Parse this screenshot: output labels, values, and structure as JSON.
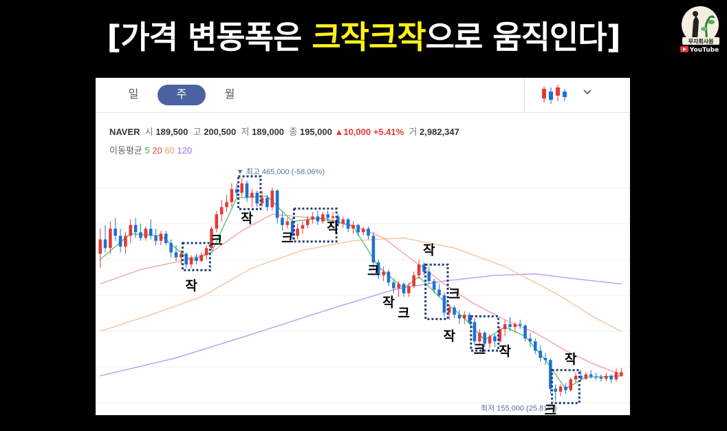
{
  "title": {
    "pre": "[가격 변동폭은 ",
    "highlight": "크작크작",
    "post": "으로 움직인다]"
  },
  "logo": {
    "channel": "무자회사원",
    "platform": "YouTube"
  },
  "tabs": [
    {
      "label": "일"
    },
    {
      "label": "주",
      "active": true
    },
    {
      "label": "월"
    }
  ],
  "stock": {
    "name": "NAVER",
    "open_label": "시",
    "open": "189,500",
    "high_label": "고",
    "high": "200,500",
    "low_label": "저",
    "low": "189,000",
    "close_label": "종",
    "close": "195,000",
    "change": "10,000",
    "change_pct": "+5.41%",
    "volume_label": "거",
    "volume": "2,982,347"
  },
  "ma_legend": {
    "label": "이동평균",
    "items": [
      {
        "p": "5",
        "color": "#3ab54a"
      },
      {
        "p": "20",
        "color": "#e8474b"
      },
      {
        "p": "60",
        "color": "#f29f5c"
      },
      {
        "p": "120",
        "color": "#9a6cf0"
      }
    ]
  },
  "colors": {
    "up": "#e53935",
    "down": "#1e6fd9",
    "box": "#1f3b7a"
  },
  "chart_data": {
    "type": "candlestick",
    "series_count": 104,
    "high_annotation": "최고 465,000 (-58.06%)",
    "low_annotation": "최저 155,000 (25.81%)",
    "ylim": [
      140000,
      490000
    ],
    "candles": [
      {
        "o": 360000,
        "h": 395000,
        "l": 340000,
        "c": 380000
      },
      {
        "o": 380000,
        "h": 400000,
        "l": 362000,
        "c": 368000
      },
      {
        "o": 368000,
        "h": 405000,
        "l": 360000,
        "c": 395000
      },
      {
        "o": 395000,
        "h": 410000,
        "l": 378000,
        "c": 385000
      },
      {
        "o": 385000,
        "h": 395000,
        "l": 362000,
        "c": 370000
      },
      {
        "o": 370000,
        "h": 390000,
        "l": 360000,
        "c": 385000
      },
      {
        "o": 385000,
        "h": 408000,
        "l": 375000,
        "c": 400000
      },
      {
        "o": 400000,
        "h": 410000,
        "l": 382000,
        "c": 390000
      },
      {
        "o": 390000,
        "h": 402000,
        "l": 378000,
        "c": 382000
      },
      {
        "o": 382000,
        "h": 398000,
        "l": 378000,
        "c": 395000
      },
      {
        "o": 395000,
        "h": 408000,
        "l": 380000,
        "c": 385000
      },
      {
        "o": 385000,
        "h": 395000,
        "l": 372000,
        "c": 378000
      },
      {
        "o": 378000,
        "h": 392000,
        "l": 372000,
        "c": 388000
      },
      {
        "o": 388000,
        "h": 392000,
        "l": 372000,
        "c": 375000
      },
      {
        "o": 375000,
        "h": 380000,
        "l": 355000,
        "c": 362000
      },
      {
        "o": 362000,
        "h": 372000,
        "l": 350000,
        "c": 355000
      },
      {
        "o": 355000,
        "h": 365000,
        "l": 345000,
        "c": 360000
      },
      {
        "o": 360000,
        "h": 362000,
        "l": 340000,
        "c": 345000
      },
      {
        "o": 345000,
        "h": 358000,
        "l": 340000,
        "c": 355000
      },
      {
        "o": 355000,
        "h": 360000,
        "l": 345000,
        "c": 350000
      },
      {
        "o": 350000,
        "h": 362000,
        "l": 348000,
        "c": 358000
      },
      {
        "o": 358000,
        "h": 372000,
        "l": 352000,
        "c": 368000
      },
      {
        "o": 368000,
        "h": 398000,
        "l": 365000,
        "c": 395000
      },
      {
        "o": 395000,
        "h": 420000,
        "l": 390000,
        "c": 415000
      },
      {
        "o": 415000,
        "h": 435000,
        "l": 405000,
        "c": 425000
      },
      {
        "o": 425000,
        "h": 442000,
        "l": 418000,
        "c": 432000
      },
      {
        "o": 432000,
        "h": 458000,
        "l": 425000,
        "c": 450000
      },
      {
        "o": 450000,
        "h": 458000,
        "l": 438000,
        "c": 445000
      },
      {
        "o": 445000,
        "h": 465000,
        "l": 440000,
        "c": 458000
      },
      {
        "o": 458000,
        "h": 462000,
        "l": 432000,
        "c": 438000
      },
      {
        "o": 438000,
        "h": 450000,
        "l": 425000,
        "c": 445000
      },
      {
        "o": 445000,
        "h": 448000,
        "l": 425000,
        "c": 430000
      },
      {
        "o": 430000,
        "h": 448000,
        "l": 425000,
        "c": 438000
      },
      {
        "o": 438000,
        "h": 442000,
        "l": 420000,
        "c": 425000
      },
      {
        "o": 425000,
        "h": 452000,
        "l": 420000,
        "c": 448000
      },
      {
        "o": 448000,
        "h": 450000,
        "l": 402000,
        "c": 410000
      },
      {
        "o": 410000,
        "h": 418000,
        "l": 392000,
        "c": 400000
      },
      {
        "o": 400000,
        "h": 410000,
        "l": 395000,
        "c": 405000
      },
      {
        "o": 405000,
        "h": 410000,
        "l": 380000,
        "c": 385000
      },
      {
        "o": 385000,
        "h": 402000,
        "l": 380000,
        "c": 395000
      },
      {
        "o": 395000,
        "h": 405000,
        "l": 388000,
        "c": 400000
      },
      {
        "o": 400000,
        "h": 412000,
        "l": 395000,
        "c": 408000
      },
      {
        "o": 408000,
        "h": 418000,
        "l": 402000,
        "c": 412000
      },
      {
        "o": 412000,
        "h": 420000,
        "l": 400000,
        "c": 405000
      },
      {
        "o": 405000,
        "h": 418000,
        "l": 402000,
        "c": 415000
      },
      {
        "o": 415000,
        "h": 420000,
        "l": 405000,
        "c": 410000
      },
      {
        "o": 410000,
        "h": 418000,
        "l": 402000,
        "c": 412000
      },
      {
        "o": 412000,
        "h": 415000,
        "l": 398000,
        "c": 402000
      },
      {
        "o": 402000,
        "h": 412000,
        "l": 396000,
        "c": 408000
      },
      {
        "o": 408000,
        "h": 410000,
        "l": 390000,
        "c": 395000
      },
      {
        "o": 395000,
        "h": 405000,
        "l": 388000,
        "c": 400000
      },
      {
        "o": 400000,
        "h": 402000,
        "l": 385000,
        "c": 390000
      },
      {
        "o": 390000,
        "h": 398000,
        "l": 385000,
        "c": 395000
      },
      {
        "o": 395000,
        "h": 398000,
        "l": 380000,
        "c": 385000
      },
      {
        "o": 385000,
        "h": 390000,
        "l": 340000,
        "c": 348000
      },
      {
        "o": 348000,
        "h": 352000,
        "l": 325000,
        "c": 330000
      },
      {
        "o": 330000,
        "h": 342000,
        "l": 322000,
        "c": 335000
      },
      {
        "o": 335000,
        "h": 338000,
        "l": 315000,
        "c": 320000
      },
      {
        "o": 320000,
        "h": 325000,
        "l": 305000,
        "c": 312000
      },
      {
        "o": 312000,
        "h": 322000,
        "l": 300000,
        "c": 318000
      },
      {
        "o": 318000,
        "h": 320000,
        "l": 300000,
        "c": 305000
      },
      {
        "o": 305000,
        "h": 320000,
        "l": 300000,
        "c": 315000
      },
      {
        "o": 315000,
        "h": 335000,
        "l": 312000,
        "c": 330000
      },
      {
        "o": 330000,
        "h": 352000,
        "l": 325000,
        "c": 345000
      },
      {
        "o": 345000,
        "h": 348000,
        "l": 330000,
        "c": 335000
      },
      {
        "o": 335000,
        "h": 342000,
        "l": 318000,
        "c": 322000
      },
      {
        "o": 322000,
        "h": 325000,
        "l": 305000,
        "c": 310000
      },
      {
        "o": 310000,
        "h": 318000,
        "l": 300000,
        "c": 302000
      },
      {
        "o": 302000,
        "h": 306000,
        "l": 272000,
        "c": 278000
      },
      {
        "o": 278000,
        "h": 290000,
        "l": 268000,
        "c": 285000
      },
      {
        "o": 285000,
        "h": 288000,
        "l": 270000,
        "c": 275000
      },
      {
        "o": 275000,
        "h": 282000,
        "l": 262000,
        "c": 270000
      },
      {
        "o": 270000,
        "h": 280000,
        "l": 262000,
        "c": 275000
      },
      {
        "o": 275000,
        "h": 278000,
        "l": 262000,
        "c": 265000
      },
      {
        "o": 265000,
        "h": 270000,
        "l": 232000,
        "c": 238000
      },
      {
        "o": 238000,
        "h": 255000,
        "l": 232000,
        "c": 250000
      },
      {
        "o": 250000,
        "h": 252000,
        "l": 230000,
        "c": 235000
      },
      {
        "o": 235000,
        "h": 248000,
        "l": 228000,
        "c": 245000
      },
      {
        "o": 245000,
        "h": 248000,
        "l": 230000,
        "c": 238000
      },
      {
        "o": 238000,
        "h": 258000,
        "l": 236000,
        "c": 255000
      },
      {
        "o": 255000,
        "h": 268000,
        "l": 245000,
        "c": 262000
      },
      {
        "o": 262000,
        "h": 272000,
        "l": 252000,
        "c": 258000
      },
      {
        "o": 258000,
        "h": 265000,
        "l": 250000,
        "c": 262000
      },
      {
        "o": 262000,
        "h": 268000,
        "l": 255000,
        "c": 260000
      },
      {
        "o": 260000,
        "h": 262000,
        "l": 238000,
        "c": 242000
      },
      {
        "o": 242000,
        "h": 250000,
        "l": 230000,
        "c": 238000
      },
      {
        "o": 238000,
        "h": 242000,
        "l": 220000,
        "c": 225000
      },
      {
        "o": 225000,
        "h": 232000,
        "l": 210000,
        "c": 215000
      },
      {
        "o": 215000,
        "h": 222000,
        "l": 205000,
        "c": 212000
      },
      {
        "o": 212000,
        "h": 215000,
        "l": 165000,
        "c": 172000
      },
      {
        "o": 172000,
        "h": 178000,
        "l": 155000,
        "c": 168000
      },
      {
        "o": 168000,
        "h": 178000,
        "l": 162000,
        "c": 175000
      },
      {
        "o": 175000,
        "h": 180000,
        "l": 165000,
        "c": 170000
      },
      {
        "o": 170000,
        "h": 188000,
        "l": 168000,
        "c": 185000
      },
      {
        "o": 185000,
        "h": 195000,
        "l": 180000,
        "c": 190000
      },
      {
        "o": 190000,
        "h": 198000,
        "l": 182000,
        "c": 186000
      },
      {
        "o": 186000,
        "h": 195000,
        "l": 184000,
        "c": 192000
      },
      {
        "o": 192000,
        "h": 198000,
        "l": 186000,
        "c": 189000
      },
      {
        "o": 189000,
        "h": 194000,
        "l": 184000,
        "c": 188000
      },
      {
        "o": 188000,
        "h": 192000,
        "l": 182000,
        "c": 186000
      },
      {
        "o": 186000,
        "h": 194000,
        "l": 182000,
        "c": 190000
      },
      {
        "o": 190000,
        "h": 192000,
        "l": 180000,
        "c": 185000
      },
      {
        "o": 185000,
        "h": 200500,
        "l": 182000,
        "c": 195000
      },
      {
        "o": 189500,
        "h": 200500,
        "l": 189000,
        "c": 195000
      }
    ],
    "ma": {
      "ma5": [
        [
          0,
          352000
        ],
        [
          6,
          388000
        ],
        [
          12,
          385000
        ],
        [
          18,
          350000
        ],
        [
          22,
          362000
        ],
        [
          27,
          438000
        ],
        [
          33,
          440000
        ],
        [
          38,
          405000
        ],
        [
          44,
          410000
        ],
        [
          50,
          398000
        ],
        [
          55,
          342000
        ],
        [
          60,
          312000
        ],
        [
          63,
          328000
        ],
        [
          67,
          300000
        ],
        [
          72,
          270000
        ],
        [
          76,
          240000
        ],
        [
          80,
          258000
        ],
        [
          84,
          245000
        ],
        [
          88,
          212000
        ],
        [
          92,
          172000
        ],
        [
          96,
          188000
        ],
        [
          103,
          190000
        ]
      ],
      "ma20": [
        [
          0,
          318000
        ],
        [
          8,
          338000
        ],
        [
          16,
          350000
        ],
        [
          22,
          362000
        ],
        [
          28,
          392000
        ],
        [
          34,
          415000
        ],
        [
          42,
          410000
        ],
        [
          50,
          400000
        ],
        [
          56,
          382000
        ],
        [
          62,
          350000
        ],
        [
          68,
          318000
        ],
        [
          74,
          290000
        ],
        [
          80,
          268000
        ],
        [
          86,
          250000
        ],
        [
          92,
          225000
        ],
        [
          98,
          205000
        ],
        [
          103,
          192000
        ]
      ],
      "ma60": [
        [
          0,
          252000
        ],
        [
          10,
          275000
        ],
        [
          20,
          300000
        ],
        [
          30,
          340000
        ],
        [
          40,
          365000
        ],
        [
          50,
          378000
        ],
        [
          60,
          382000
        ],
        [
          70,
          368000
        ],
        [
          80,
          342000
        ],
        [
          90,
          305000
        ],
        [
          98,
          270000
        ],
        [
          103,
          252000
        ]
      ],
      "ma120": [
        [
          0,
          190000
        ],
        [
          15,
          215000
        ],
        [
          30,
          248000
        ],
        [
          45,
          282000
        ],
        [
          58,
          310000
        ],
        [
          68,
          322000
        ],
        [
          78,
          330000
        ],
        [
          86,
          332000
        ],
        [
          94,
          325000
        ],
        [
          103,
          318000
        ]
      ]
    },
    "annotations": [
      {
        "text": "작",
        "kind": "small"
      },
      {
        "text": "크",
        "kind": "big"
      },
      {
        "text": "작",
        "kind": "small"
      },
      {
        "text": "크",
        "kind": "big"
      },
      {
        "text": "작",
        "kind": "small"
      },
      {
        "text": "크",
        "kind": "big"
      },
      {
        "text": "작",
        "kind": "small"
      },
      {
        "text": "크",
        "kind": "big"
      },
      {
        "text": "작",
        "kind": "small"
      },
      {
        "text": "크",
        "kind": "big"
      },
      {
        "text": "작",
        "kind": "small"
      },
      {
        "text": "크",
        "kind": "big"
      },
      {
        "text": "작",
        "kind": "small"
      },
      {
        "text": "크",
        "kind": "big"
      },
      {
        "text": "작",
        "kind": "small"
      }
    ]
  }
}
